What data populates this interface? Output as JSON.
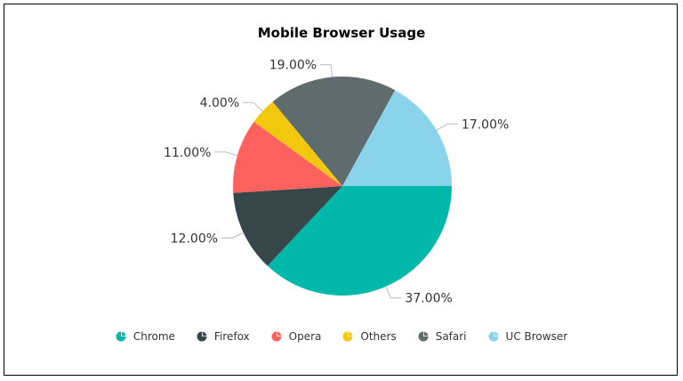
{
  "chart_data": {
    "type": "pie",
    "title": "Mobile Browser Usage",
    "categories": [
      "Chrome",
      "Firefox",
      "Opera",
      "Others",
      "Safari",
      "UC Browser"
    ],
    "values": [
      37,
      12,
      11,
      4,
      19,
      17
    ],
    "labels": [
      "37.00%",
      "12.00%",
      "11.00%",
      "4.00%",
      "19.00%",
      "17.00%"
    ],
    "colors": [
      "#00b8aa",
      "#374649",
      "#fd625e",
      "#f2c80f",
      "#5f6b6d",
      "#8ad4eb"
    ],
    "legend_position": "bottom"
  }
}
